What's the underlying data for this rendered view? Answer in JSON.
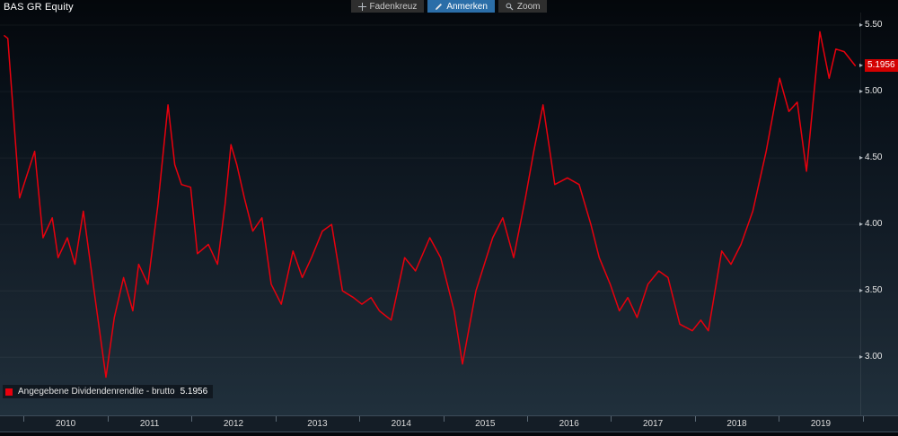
{
  "window": {
    "title": "BAS GR Equity"
  },
  "toolbar": {
    "buttons": [
      {
        "label": "Fadenkreuz",
        "icon": "crosshair-icon",
        "active": false
      },
      {
        "label": "Anmerken",
        "icon": "pencil-icon",
        "active": true
      },
      {
        "label": "Zoom",
        "icon": "magnifier-icon",
        "active": false
      }
    ]
  },
  "legend": {
    "label": "Angegebene Dividendenrendite - brutto",
    "value": "5.1956",
    "swatch_color": "#e8000d"
  },
  "value_badge": {
    "text": "5.1956",
    "bg": "#d40000"
  },
  "axis": {
    "yticks": [
      "5.50",
      "5.00",
      "4.50",
      "4.00",
      "3.50",
      "3.00"
    ],
    "years": [
      "2010",
      "2011",
      "2012",
      "2013",
      "2014",
      "2015",
      "2016",
      "2017",
      "2018",
      "2019"
    ]
  },
  "chart_data": {
    "type": "line",
    "title": "BAS GR Equity — Angegebene Dividendenrendite - brutto",
    "xlabel": "",
    "ylabel": "",
    "legend_position": "bottom-left",
    "grid": "faint-horizontal",
    "line_color": "#e8000d",
    "last_value": 5.1956,
    "xlim": [
      2009.76,
      2019.95
    ],
    "ylim": [
      2.57,
      5.5
    ],
    "yticks": [
      3.0,
      3.5,
      4.0,
      4.5,
      5.0,
      5.5
    ],
    "x": [
      2009.77,
      2009.81,
      2009.95,
      2010.13,
      2010.23,
      2010.34,
      2010.41,
      2010.52,
      2010.61,
      2010.71,
      2010.85,
      2010.98,
      2011.08,
      2011.19,
      2011.3,
      2011.37,
      2011.48,
      2011.6,
      2011.72,
      2011.8,
      2011.88,
      2011.99,
      2012.07,
      2012.2,
      2012.31,
      2012.4,
      2012.47,
      2012.54,
      2012.63,
      2012.73,
      2012.84,
      2012.95,
      2013.07,
      2013.21,
      2013.32,
      2013.43,
      2013.56,
      2013.67,
      2013.8,
      2013.93,
      2014.03,
      2014.14,
      2014.24,
      2014.38,
      2014.54,
      2014.67,
      2014.84,
      2014.97,
      2015.13,
      2015.23,
      2015.39,
      2015.59,
      2015.71,
      2015.84,
      2015.98,
      2016.08,
      2016.19,
      2016.33,
      2016.48,
      2016.62,
      2016.76,
      2016.86,
      2016.99,
      2017.1,
      2017.2,
      2017.31,
      2017.44,
      2017.57,
      2017.68,
      2017.82,
      2017.97,
      2018.07,
      2018.16,
      2018.32,
      2018.43,
      2018.55,
      2018.69,
      2018.85,
      2019.01,
      2019.12,
      2019.22,
      2019.33,
      2019.49,
      2019.6,
      2019.68,
      2019.78,
      2019.91
    ],
    "y": [
      5.42,
      5.4,
      4.2,
      4.55,
      3.9,
      4.05,
      3.75,
      3.9,
      3.7,
      4.1,
      3.45,
      2.85,
      3.3,
      3.6,
      3.35,
      3.7,
      3.55,
      4.15,
      4.9,
      4.45,
      4.3,
      4.28,
      3.78,
      3.85,
      3.7,
      4.15,
      4.6,
      4.45,
      4.2,
      3.95,
      4.05,
      3.55,
      3.4,
      3.8,
      3.6,
      3.75,
      3.95,
      4.0,
      3.5,
      3.45,
      3.4,
      3.45,
      3.35,
      3.28,
      3.75,
      3.65,
      3.9,
      3.75,
      3.35,
      2.95,
      3.5,
      3.9,
      4.05,
      3.75,
      4.2,
      4.55,
      4.9,
      4.3,
      4.35,
      4.3,
      4.0,
      3.75,
      3.55,
      3.35,
      3.45,
      3.3,
      3.55,
      3.65,
      3.6,
      3.25,
      3.2,
      3.28,
      3.2,
      3.8,
      3.7,
      3.85,
      4.1,
      4.55,
      5.1,
      4.85,
      4.92,
      4.4,
      5.45,
      5.1,
      5.32,
      5.3,
      5.1956
    ]
  }
}
